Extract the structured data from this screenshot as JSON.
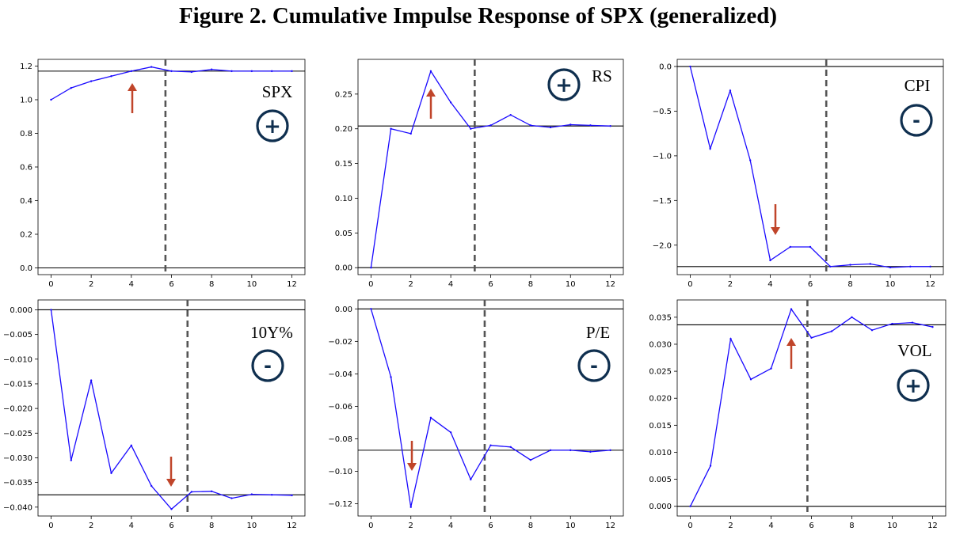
{
  "title": "Figure 2. Cumulative Impulse Response of SPX (generalized)",
  "chart_data": [
    {
      "type": "line",
      "label": "SPX",
      "sign": "+",
      "arrow": "up",
      "x": [
        0,
        1,
        2,
        3,
        4,
        5,
        6,
        7,
        8,
        9,
        10,
        11,
        12
      ],
      "values": [
        1.0,
        1.07,
        1.11,
        1.14,
        1.17,
        1.195,
        1.17,
        1.165,
        1.18,
        1.17,
        1.17,
        1.17,
        1.17
      ],
      "hline": 1.17,
      "vline": 5.7,
      "zero_line": true,
      "xlim": [
        -0.65,
        12.65
      ],
      "ylim": [
        -0.04,
        1.24
      ],
      "xticks": [
        "0",
        "2",
        "4",
        "6",
        "8",
        "10",
        "12"
      ],
      "yticks": [
        "0.0",
        "0.2",
        "0.4",
        "0.6",
        "0.8",
        "1.0",
        "1.2"
      ],
      "line_color": "#1a0aff",
      "arrow_color": "#c0452a"
    },
    {
      "type": "line",
      "label": "RS",
      "sign": "+",
      "arrow": "up",
      "x": [
        0,
        1,
        2,
        3,
        4,
        5,
        6,
        7,
        8,
        9,
        10,
        11,
        12
      ],
      "values": [
        0.0,
        0.2,
        0.193,
        0.283,
        0.238,
        0.2,
        0.205,
        0.22,
        0.205,
        0.202,
        0.206,
        0.205,
        0.204
      ],
      "hline": 0.204,
      "vline": 5.2,
      "zero_line": true,
      "xlim": [
        -0.65,
        12.65
      ],
      "ylim": [
        -0.01,
        0.3
      ],
      "xticks": [
        "0",
        "2",
        "4",
        "6",
        "8",
        "10",
        "12"
      ],
      "yticks": [
        "0.00",
        "0.05",
        "0.10",
        "0.15",
        "0.20",
        "0.25"
      ],
      "line_color": "#1a0aff",
      "arrow_color": "#c0452a"
    },
    {
      "type": "line",
      "label": "CPI",
      "sign": "-",
      "arrow": "down",
      "x": [
        0,
        1,
        2,
        3,
        4,
        5,
        6,
        7,
        8,
        9,
        10,
        11,
        12
      ],
      "values": [
        0.0,
        -0.92,
        -0.27,
        -1.05,
        -2.17,
        -2.02,
        -2.02,
        -2.24,
        -2.22,
        -2.21,
        -2.25,
        -2.24,
        -2.24
      ],
      "hline": -2.24,
      "vline": 6.8,
      "zero_line": true,
      "xlim": [
        -0.65,
        12.65
      ],
      "ylim": [
        -2.33,
        0.08
      ],
      "xticks": [
        "0",
        "2",
        "4",
        "6",
        "8",
        "10",
        "12"
      ],
      "yticks": [
        "0.0",
        "−0.5",
        "−1.0",
        "−1.5",
        "−2.0"
      ],
      "line_color": "#1a0aff",
      "arrow_color": "#c0452a"
    },
    {
      "type": "line",
      "label": "10Y%",
      "sign": "-",
      "arrow": "down",
      "x": [
        0,
        1,
        2,
        3,
        4,
        5,
        6,
        7,
        8,
        9,
        10,
        11,
        12
      ],
      "values": [
        0.0,
        -0.0305,
        -0.0143,
        -0.0331,
        -0.0275,
        -0.0357,
        -0.0404,
        -0.0369,
        -0.0368,
        -0.0382,
        -0.0374,
        -0.0375,
        -0.0376
      ],
      "hline": -0.0375,
      "vline": 6.8,
      "zero_line": true,
      "xlim": [
        -0.65,
        12.65
      ],
      "ylim": [
        -0.0418,
        0.002
      ],
      "xticks": [
        "0",
        "2",
        "4",
        "6",
        "8",
        "10",
        "12"
      ],
      "yticks": [
        "0.000",
        "−0.005",
        "−0.010",
        "−0.015",
        "−0.020",
        "−0.025",
        "−0.030",
        "−0.035",
        "−0.040"
      ],
      "line_color": "#1a0aff",
      "arrow_color": "#c0452a"
    },
    {
      "type": "line",
      "label": "P/E",
      "sign": "-",
      "arrow": "down",
      "x": [
        0,
        1,
        2,
        3,
        4,
        5,
        6,
        7,
        8,
        9,
        10,
        11,
        12
      ],
      "values": [
        0.0,
        -0.042,
        -0.122,
        -0.067,
        -0.076,
        -0.105,
        -0.084,
        -0.085,
        -0.093,
        -0.087,
        -0.087,
        -0.088,
        -0.087
      ],
      "hline": -0.087,
      "vline": 5.7,
      "zero_line": true,
      "xlim": [
        -0.65,
        12.65
      ],
      "ylim": [
        -0.1275,
        0.0055
      ],
      "xticks": [
        "0",
        "2",
        "4",
        "6",
        "8",
        "10",
        "12"
      ],
      "yticks": [
        "0.00",
        "−0.02",
        "−0.04",
        "−0.06",
        "−0.08",
        "−0.10",
        "−0.12"
      ],
      "line_color": "#1a0aff",
      "arrow_color": "#c0452a"
    },
    {
      "type": "line",
      "label": "VOL",
      "sign": "+",
      "arrow": "up",
      "x": [
        0,
        1,
        2,
        3,
        4,
        5,
        6,
        7,
        8,
        9,
        10,
        11,
        12
      ],
      "values": [
        0.0,
        0.0075,
        0.031,
        0.0235,
        0.0255,
        0.0365,
        0.0312,
        0.0324,
        0.035,
        0.0326,
        0.0338,
        0.034,
        0.0332
      ],
      "hline": 0.0336,
      "vline": 5.8,
      "zero_line": true,
      "xlim": [
        -0.65,
        12.65
      ],
      "ylim": [
        -0.0018,
        0.0382
      ],
      "xticks": [
        "0",
        "2",
        "4",
        "6",
        "8",
        "10",
        "12"
      ],
      "yticks": [
        "0.000",
        "0.005",
        "0.010",
        "0.015",
        "0.020",
        "0.025",
        "0.030",
        "0.035"
      ],
      "line_color": "#1a0aff",
      "arrow_color": "#c0452a"
    }
  ]
}
